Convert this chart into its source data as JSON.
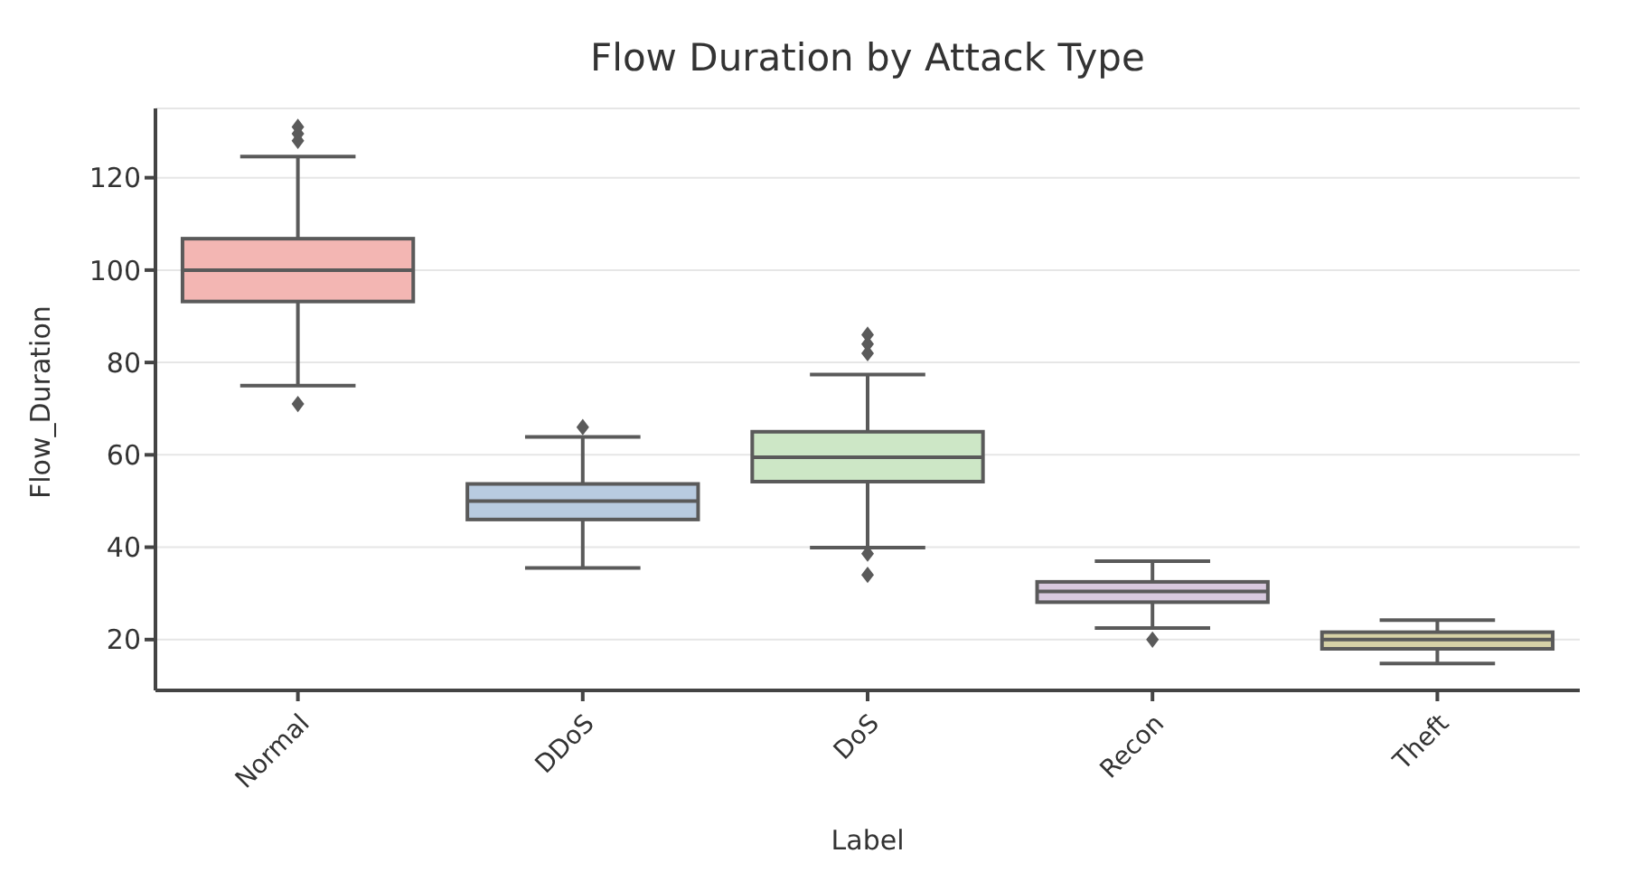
{
  "chart_data": {
    "type": "box",
    "title": "Flow Duration by Attack Type",
    "xlabel": "Label",
    "ylabel": "Flow_Duration",
    "categories": [
      "Normal",
      "DDoS",
      "DoS",
      "Recon",
      "Theft"
    ],
    "colors": [
      "#f3b6b3",
      "#b8cbe0",
      "#cde7c6",
      "#d8c9de",
      "#d6d1a6"
    ],
    "boxes": [
      {
        "low": 75,
        "q1": 93.2,
        "median": 100,
        "q3": 106.8,
        "high": 124.6,
        "outliers": [
          71,
          128,
          129.5,
          131
        ]
      },
      {
        "low": 35.5,
        "q1": 46,
        "median": 50,
        "q3": 53.7,
        "high": 63.9,
        "outliers": [
          66
        ]
      },
      {
        "low": 39.9,
        "q1": 54.2,
        "median": 59.5,
        "q3": 65,
        "high": 77.4,
        "outliers": [
          82,
          84,
          86,
          38.6,
          34
        ]
      },
      {
        "low": 22.5,
        "q1": 28.1,
        "median": 30.4,
        "q3": 32.5,
        "high": 37,
        "outliers": [
          20
        ]
      },
      {
        "low": 14.8,
        "q1": 18,
        "median": 20,
        "q3": 21.6,
        "high": 24.2
      }
    ],
    "ylim": [
      9,
      135
    ],
    "yticks": [
      20,
      40,
      60,
      80,
      100,
      120
    ],
    "grid": "y",
    "marker": "diamond"
  }
}
